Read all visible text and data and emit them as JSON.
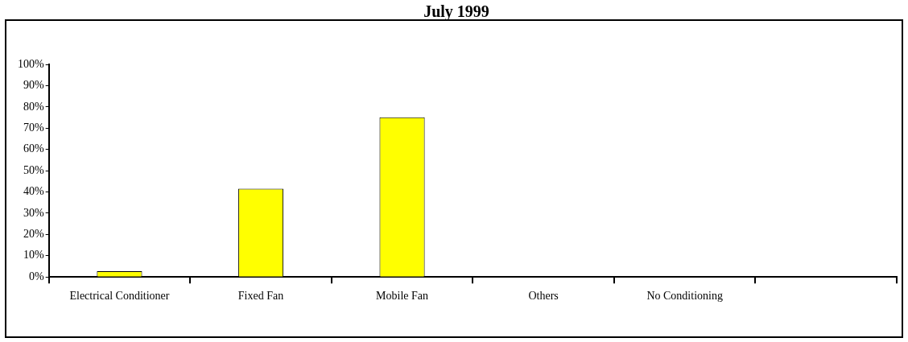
{
  "chart_data": {
    "type": "bar",
    "title": "July 1999",
    "categories": [
      "Electrical Conditioner",
      "Fixed Fan",
      "Mobile Fan",
      "Others",
      "No Conditioning",
      null
    ],
    "values": [
      2.7,
      41.5,
      75.1,
      0,
      0,
      null
    ],
    "color": "#ffff00",
    "ylim": [
      0,
      100
    ],
    "yticks": [
      {
        "value": 0,
        "label": "0%"
      },
      {
        "value": 10,
        "label": "10%"
      },
      {
        "value": 20,
        "label": "20%"
      },
      {
        "value": 30,
        "label": "30%"
      },
      {
        "value": 40,
        "label": "40%"
      },
      {
        "value": 50,
        "label": "50%"
      },
      {
        "value": 60,
        "label": "60%"
      },
      {
        "value": 70,
        "label": "70%"
      },
      {
        "value": 80,
        "label": "80%"
      },
      {
        "value": 90,
        "label": "90%"
      },
      {
        "value": 100,
        "label": "100%"
      }
    ],
    "grid": false,
    "legend": false
  }
}
